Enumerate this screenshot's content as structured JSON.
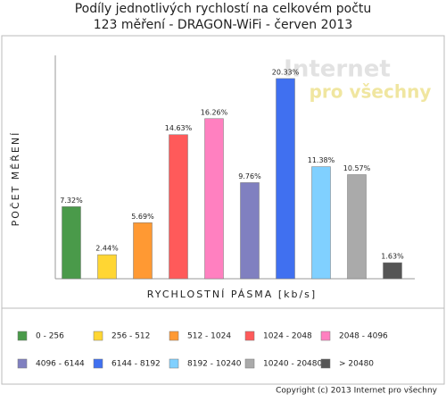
{
  "chart_data": {
    "type": "bar",
    "title": [
      "Podíly jednotlivých rychlostí na celkovém počtu",
      "123 měření - DRAGON-WiFi - červen 2013"
    ],
    "y_label": "POČET MĚŘENÍ",
    "x_label": "RYCHLOSTNÍ PÁSMA [kb/s]",
    "categories": [
      "0 - 256",
      "256 - 512",
      "512 - 1024",
      "1024 - 2048",
      "2048 - 4096",
      "4096 - 6144",
      "6144 - 8192",
      "8192 - 10240",
      "10240 - 20480",
      "> 20480"
    ],
    "values": [
      7.32,
      2.44,
      5.69,
      14.63,
      16.26,
      9.76,
      20.33,
      11.38,
      10.57,
      1.63
    ],
    "value_labels": [
      "7.32%",
      "2.44%",
      "5.69%",
      "14.63%",
      "16.26%",
      "9.76%",
      "20.33%",
      "11.38%",
      "10.57%",
      "1.63%"
    ],
    "colors": [
      "#4a9a4a",
      "#ffd633",
      "#ff9933",
      "#ff5a5a",
      "#ff80c0",
      "#8080c0",
      "#4070f0",
      "#80d0ff",
      "#aaaaaa",
      "#555555"
    ],
    "ylim": [
      0,
      22.5
    ],
    "watermark": [
      "Internet",
      "pro všechny"
    ],
    "copyright": "Copyright (c) 2013 Internet pro všechny"
  }
}
